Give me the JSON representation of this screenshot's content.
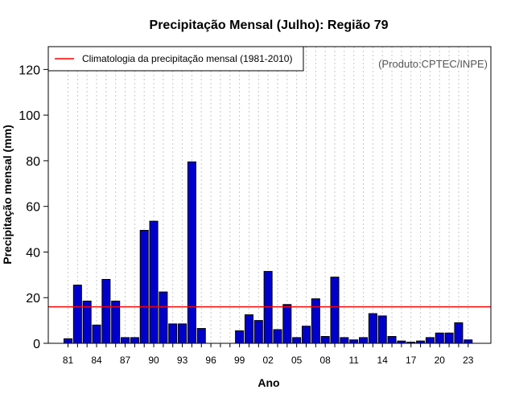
{
  "chart_data": {
    "type": "bar",
    "title": "Precipitação Mensal (Julho): Região 79",
    "xlabel": "Ano",
    "ylabel": "Precipitação mensal (mm)",
    "credit": "(Produto:CPTEC/INPE)",
    "ylim": [
      0,
      130
    ],
    "yticks": [
      0,
      20,
      40,
      60,
      80,
      100,
      120
    ],
    "years": [
      1981,
      1982,
      1983,
      1984,
      1985,
      1986,
      1987,
      1988,
      1989,
      1990,
      1991,
      1992,
      1993,
      1994,
      1995,
      1996,
      1997,
      1998,
      1999,
      2000,
      2001,
      2002,
      2003,
      2004,
      2005,
      2006,
      2007,
      2008,
      2009,
      2010,
      2011,
      2012,
      2013,
      2014,
      2015,
      2016,
      2017,
      2018,
      2019,
      2020,
      2021,
      2022,
      2023
    ],
    "values": [
      2,
      25.5,
      18.5,
      8,
      28,
      18.5,
      2.5,
      2.5,
      49.5,
      53.5,
      22.5,
      8.5,
      8.5,
      79.5,
      6.5,
      0,
      0,
      0,
      5.5,
      12.5,
      10,
      31.5,
      6,
      17,
      2.5,
      7.5,
      19.5,
      3,
      29,
      2.5,
      1.5,
      2.5,
      13,
      12,
      3,
      1,
      0.5,
      1,
      2.5,
      4.5,
      4.5,
      9,
      1.5
    ],
    "xtick_labels": [
      "81",
      "84",
      "87",
      "90",
      "93",
      "96",
      "99",
      "02",
      "05",
      "08",
      "11",
      "14",
      "17",
      "20",
      "23"
    ],
    "xtick_years": [
      1981,
      1984,
      1987,
      1990,
      1993,
      1996,
      1999,
      2002,
      2005,
      2008,
      2011,
      2014,
      2017,
      2020,
      2023
    ],
    "climatology": {
      "label": "Climatologia da precipitação mensal (1981-2010)",
      "value": 16,
      "color": "#ff0000"
    },
    "bar_color": "#0000cc",
    "grid": "vertical dotted",
    "legend_position": "top-left"
  }
}
